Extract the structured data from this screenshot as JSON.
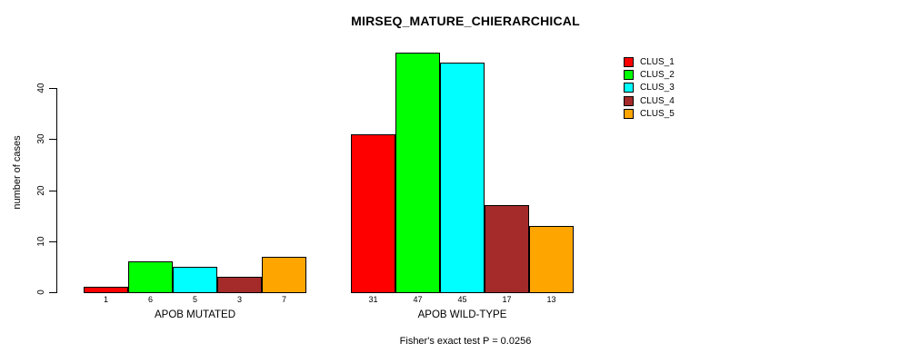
{
  "title": "MIRSEQ_MATURE_CHIERARCHICAL",
  "footer": "Fisher's exact test P = 0.0256",
  "chart_data": {
    "type": "bar",
    "title": "MIRSEQ_MATURE_CHIERARCHICAL",
    "xlabel": "",
    "ylabel": "number of cases",
    "ylim": [
      0,
      47
    ],
    "yticks": [
      0,
      10,
      20,
      30,
      40
    ],
    "grid": false,
    "legend_position": "top-right",
    "categories": [
      "APOB MUTATED",
      "APOB WILD-TYPE"
    ],
    "series": [
      {
        "name": "CLUS_1",
        "color": "#FF0000",
        "values": [
          1,
          31
        ]
      },
      {
        "name": "CLUS_2",
        "color": "#00FF00",
        "values": [
          6,
          47
        ]
      },
      {
        "name": "CLUS_3",
        "color": "#00FFFF",
        "values": [
          5,
          45
        ]
      },
      {
        "name": "CLUS_4",
        "color": "#A52A2A",
        "values": [
          3,
          17
        ]
      },
      {
        "name": "CLUS_5",
        "color": "#FFA500",
        "values": [
          7,
          13
        ]
      }
    ],
    "groups": [
      {
        "label": "APOB MUTATED",
        "values": [
          1,
          6,
          5,
          3,
          7
        ]
      },
      {
        "label": "APOB WILD-TYPE",
        "values": [
          31,
          47,
          45,
          17,
          13
        ]
      }
    ],
    "legend": {
      "entries": [
        {
          "label": "CLUS_1",
          "color": "#FF0000"
        },
        {
          "label": "CLUS_2",
          "color": "#00FF00"
        },
        {
          "label": "CLUS_3",
          "color": "#00FFFF"
        },
        {
          "label": "CLUS_4",
          "color": "#A52A2A"
        },
        {
          "label": "CLUS_5",
          "color": "#FFA500"
        }
      ]
    },
    "annotation": "Fisher's exact test P = 0.0256",
    "bar_value_labels_shown": true
  }
}
